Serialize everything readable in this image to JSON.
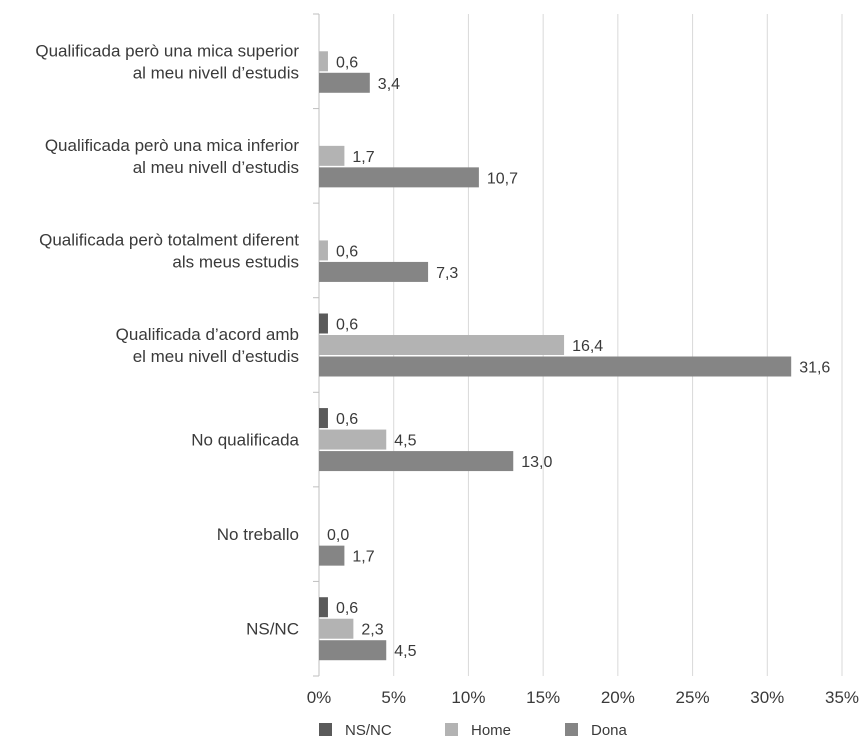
{
  "chart_data": {
    "type": "bar",
    "orientation": "horizontal",
    "categories": [
      [
        "Qualificada però una mica superior",
        "al meu nivell d’estudis"
      ],
      [
        "Qualificada però una mica inferior",
        "al meu nivell d’estudis"
      ],
      [
        "Qualificada però totalment diferent",
        "als meus estudis"
      ],
      [
        "Qualificada d’acord amb",
        "el meu nivell d’estudis"
      ],
      [
        "No qualificada"
      ],
      [
        "No treballo"
      ],
      [
        "NS/NC"
      ]
    ],
    "series": [
      {
        "name": "NS/NC",
        "color": "#5a5a5a",
        "values": [
          null,
          null,
          null,
          0.6,
          0.6,
          null,
          0.6
        ],
        "labels": [
          "",
          "",
          "",
          "0,6",
          "0,6",
          "",
          "0,6"
        ]
      },
      {
        "name": "Home",
        "color": "#b3b3b3",
        "values": [
          0.6,
          1.7,
          0.6,
          16.4,
          4.5,
          0.0,
          2.3
        ],
        "labels": [
          "0,6",
          "1,7",
          "0,6",
          "16,4",
          "4,5",
          "0,0",
          "2,3"
        ]
      },
      {
        "name": "Dona",
        "color": "#858585",
        "values": [
          3.4,
          10.7,
          7.3,
          31.6,
          13.0,
          1.7,
          4.5
        ],
        "labels": [
          "3,4",
          "10,7",
          "7,3",
          "31,6",
          "13,0",
          "1,7",
          "4,5"
        ]
      }
    ],
    "xlim": [
      0,
      35
    ],
    "xticks": [
      0,
      5,
      10,
      15,
      20,
      25,
      30,
      35
    ],
    "xtick_labels": [
      "0%",
      "5%",
      "10%",
      "15%",
      "20%",
      "25%",
      "30%",
      "35%"
    ],
    "grid": true,
    "legend": {
      "position": "bottom",
      "entries": [
        "NS/NC",
        "Home",
        "Dona"
      ]
    }
  }
}
